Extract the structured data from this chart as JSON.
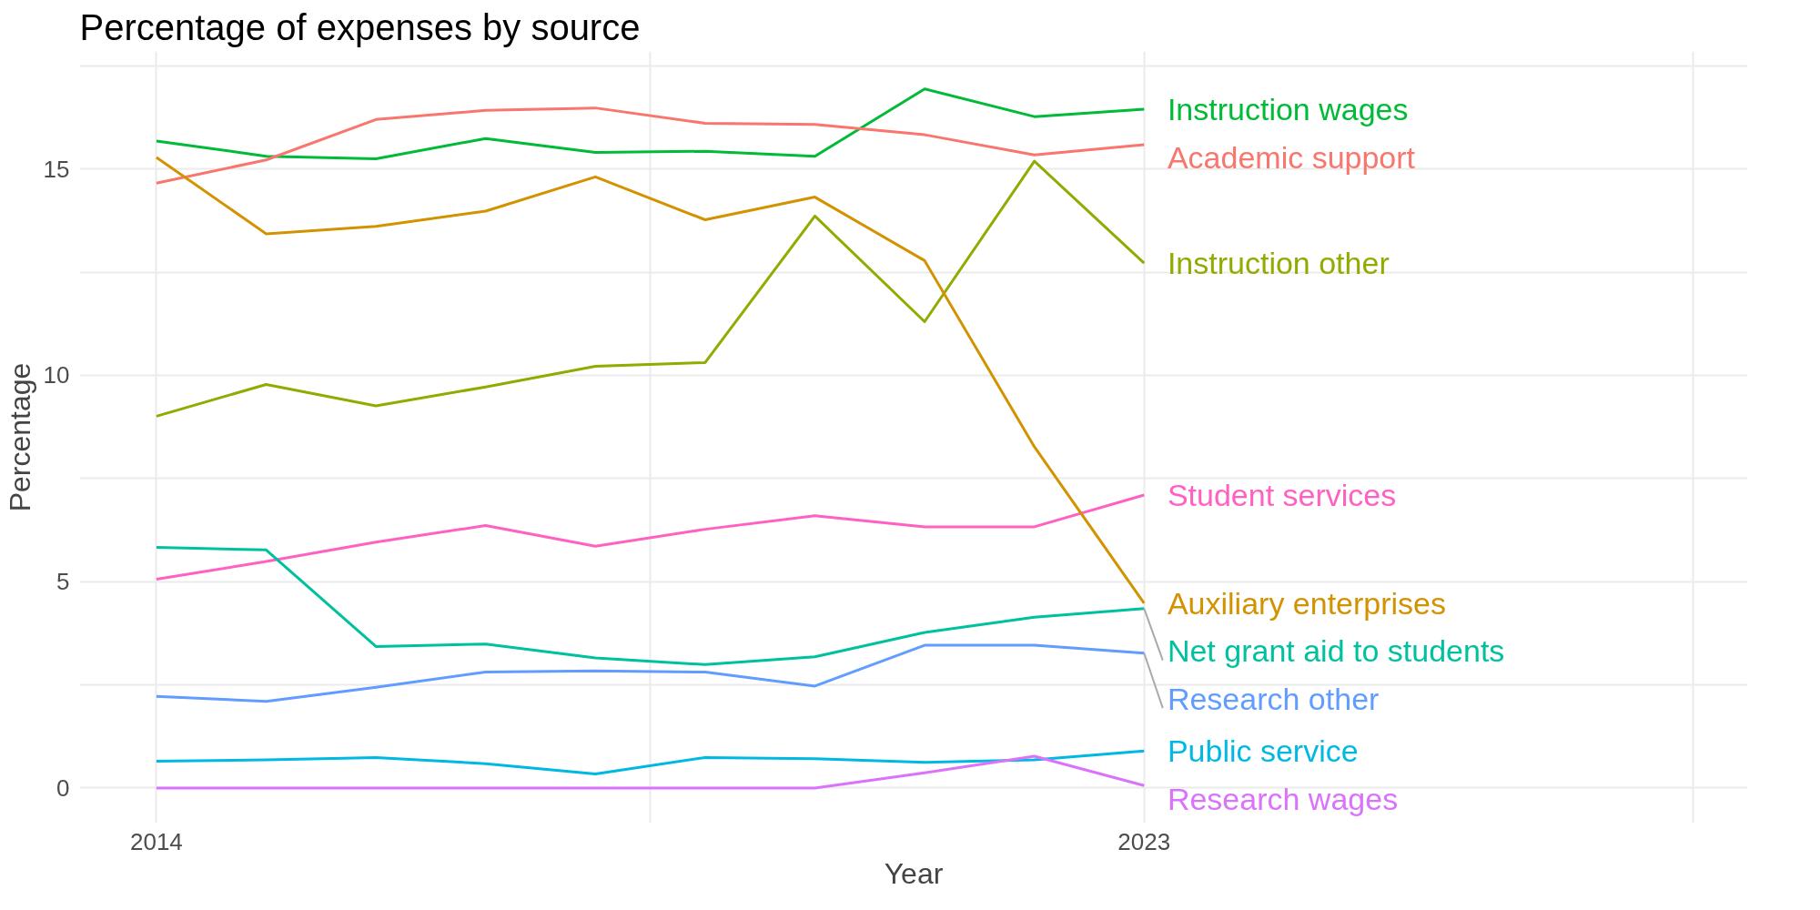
{
  "chart_data": {
    "type": "line",
    "title": "Percentage of expenses by source",
    "xlabel": "Year",
    "ylabel": "Percentage",
    "x": [
      2014,
      2015,
      2016,
      2017,
      2018,
      2019,
      2020,
      2021,
      2022,
      2023
    ],
    "xlim": [
      2013.3,
      2028.5
    ],
    "xticks": [
      2014,
      {
        "value": 2018.5,
        "label": null
      },
      2023,
      {
        "value": 2028,
        "label": null
      }
    ],
    "ylim": [
      -0.85,
      17.85
    ],
    "yticks": [
      0,
      {
        "value": 2.5,
        "label": null
      },
      5,
      {
        "value": 7.5,
        "label": null
      },
      10,
      {
        "value": 12.5,
        "label": null
      },
      15,
      {
        "value": 17.5,
        "label": null
      }
    ],
    "grid": true,
    "series": [
      {
        "name": "Instruction wages",
        "color": "#00ba38",
        "values": [
          15.68,
          15.31,
          15.25,
          15.74,
          15.4,
          15.43,
          15.31,
          16.94,
          16.27,
          16.45
        ]
      },
      {
        "name": "Academic support",
        "color": "#f8766d",
        "values": [
          14.66,
          15.22,
          16.2,
          16.42,
          16.48,
          16.11,
          16.08,
          15.83,
          15.34,
          15.59
        ]
      },
      {
        "name": "Instruction other",
        "color": "#93aa00",
        "values": [
          9.01,
          9.78,
          9.26,
          9.72,
          10.22,
          10.31,
          13.86,
          11.3,
          15.19,
          12.72
        ]
      },
      {
        "name": "Student services",
        "color": "#ff61c3",
        "values": [
          5.06,
          5.49,
          5.96,
          6.36,
          5.86,
          6.27,
          6.6,
          6.33,
          6.33,
          7.1
        ]
      },
      {
        "name": "Auxiliary enterprises",
        "color": "#d39200",
        "values": [
          15.28,
          13.43,
          13.61,
          13.98,
          14.81,
          13.77,
          14.32,
          12.78,
          8.27,
          4.48
        ]
      },
      {
        "name": "Net grant aid to students",
        "color": "#00c19f",
        "values": [
          5.83,
          5.77,
          3.43,
          3.49,
          3.15,
          2.99,
          3.18,
          3.77,
          4.14,
          4.35
        ]
      },
      {
        "name": "Research other",
        "color": "#619cff",
        "values": [
          2.22,
          2.1,
          2.44,
          2.81,
          2.84,
          2.81,
          2.47,
          3.46,
          3.46,
          3.27
        ]
      },
      {
        "name": "Public service",
        "color": "#00b9e3",
        "values": [
          0.65,
          0.68,
          0.74,
          0.59,
          0.34,
          0.74,
          0.71,
          0.62,
          0.68,
          0.9
        ]
      },
      {
        "name": "Research wages",
        "color": "#db72fb",
        "values": [
          0,
          0,
          0,
          0,
          0,
          0,
          0,
          0.37,
          0.77,
          0.06
        ]
      }
    ]
  }
}
